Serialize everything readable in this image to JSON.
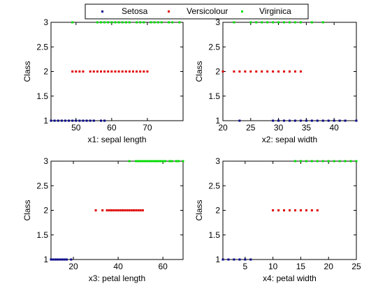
{
  "colors": {
    "setosa": "#00008B",
    "versicolour": "#E00000",
    "virginica": "#00E000"
  },
  "legend": {
    "entries": [
      "Setosa",
      "Versicolour",
      "Virginica"
    ]
  },
  "chart_data": [
    {
      "type": "scatter",
      "xlabel": "x1: sepal length",
      "ylabel": "Class",
      "xlim": [
        43,
        80
      ],
      "ylim": [
        1,
        3
      ],
      "xticks": [
        50,
        60,
        70
      ],
      "yticks": [
        1,
        1.5,
        2,
        2.5,
        3
      ],
      "series": [
        {
          "name": "Setosa",
          "y": 1,
          "x": [
            43,
            44,
            45,
            46,
            47,
            48,
            49,
            50,
            51,
            52,
            53,
            54,
            55,
            57,
            58
          ]
        },
        {
          "name": "Versicolour",
          "y": 2,
          "x": [
            49,
            50,
            51,
            52,
            54,
            55,
            56,
            57,
            58,
            59,
            60,
            61,
            62,
            63,
            64,
            65,
            66,
            67,
            68,
            69,
            70
          ]
        },
        {
          "name": "Virginica",
          "y": 3,
          "x": [
            49,
            56,
            57,
            58,
            59,
            60,
            61,
            62,
            63,
            64,
            65,
            67,
            68,
            69,
            71,
            72,
            73,
            74,
            76,
            77,
            79
          ]
        }
      ]
    },
    {
      "type": "scatter",
      "xlabel": "x2: sepal width",
      "ylabel": "Class",
      "xlim": [
        20,
        44
      ],
      "ylim": [
        1,
        3
      ],
      "xticks": [
        20,
        25,
        30,
        35,
        40
      ],
      "yticks": [
        1,
        1.5,
        2,
        2.5,
        3
      ],
      "series": [
        {
          "name": "Setosa",
          "y": 1,
          "x": [
            23,
            29,
            30,
            31,
            32,
            33,
            34,
            35,
            36,
            37,
            38,
            39,
            40,
            41,
            42,
            44
          ]
        },
        {
          "name": "Versicolour",
          "y": 2,
          "x": [
            20,
            22,
            23,
            24,
            25,
            26,
            27,
            28,
            29,
            30,
            31,
            32,
            33,
            34
          ]
        },
        {
          "name": "Virginica",
          "y": 3,
          "x": [
            22,
            25,
            26,
            27,
            28,
            29,
            30,
            31,
            32,
            33,
            34,
            36,
            38
          ]
        }
      ]
    },
    {
      "type": "scatter",
      "xlabel": "x3: petal length",
      "ylabel": "Class",
      "xlim": [
        10,
        69
      ],
      "ylim": [
        1,
        3
      ],
      "xticks": [
        20,
        40,
        60
      ],
      "yticks": [
        1,
        1.5,
        2,
        2.5,
        3
      ],
      "series": [
        {
          "name": "Setosa",
          "y": 1,
          "x": [
            10,
            11,
            12,
            13,
            14,
            15,
            16,
            17,
            19
          ]
        },
        {
          "name": "Versicolour",
          "y": 2,
          "x": [
            30,
            33,
            35,
            36,
            37,
            38,
            39,
            40,
            41,
            42,
            43,
            44,
            45,
            46,
            47,
            48,
            49,
            50,
            51
          ]
        },
        {
          "name": "Virginica",
          "y": 3,
          "x": [
            45,
            48,
            49,
            50,
            51,
            52,
            53,
            54,
            55,
            56,
            57,
            58,
            59,
            60,
            61,
            63,
            64,
            66,
            67,
            69
          ]
        }
      ]
    },
    {
      "type": "scatter",
      "xlabel": "x4: petal width",
      "ylabel": "Class",
      "xlim": [
        1,
        25
      ],
      "ylim": [
        1,
        3
      ],
      "xticks": [
        5,
        10,
        15,
        20,
        25
      ],
      "yticks": [
        1,
        1.5,
        2,
        2.5,
        3
      ],
      "series": [
        {
          "name": "Setosa",
          "y": 1,
          "x": [
            1,
            2,
            3,
            4,
            5,
            6
          ]
        },
        {
          "name": "Versicolour",
          "y": 2,
          "x": [
            10,
            11,
            12,
            13,
            14,
            15,
            16,
            17,
            18
          ]
        },
        {
          "name": "Virginica",
          "y": 3,
          "x": [
            14,
            15,
            16,
            17,
            18,
            19,
            20,
            21,
            22,
            23,
            24,
            25
          ]
        }
      ]
    }
  ]
}
